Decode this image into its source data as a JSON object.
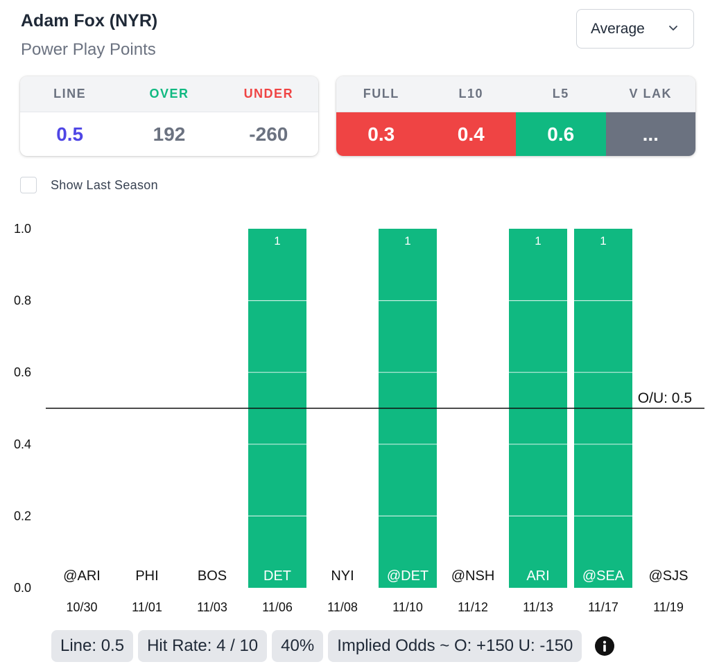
{
  "header": {
    "player": "Adam Fox (NYR)",
    "prop": "Power Play Points",
    "dropdown_value": "Average"
  },
  "line_card": {
    "headers": [
      "LINE",
      "OVER",
      "UNDER"
    ],
    "values": [
      "0.5",
      "192",
      "-260"
    ],
    "header_colors": [
      "#6b7280",
      "#10b981",
      "#ef4444"
    ],
    "value_colors": [
      "#4f46e5",
      "#6b7280",
      "#6b7280"
    ]
  },
  "avg_card": {
    "headers": [
      "FULL",
      "L10",
      "L5",
      "V LAK"
    ],
    "values": [
      "0.3",
      "0.4",
      "0.6",
      "..."
    ],
    "colors": [
      "#ef4444",
      "#ef4444",
      "#10b981",
      "#6b7280"
    ]
  },
  "show_last_season": {
    "label": "Show Last Season",
    "checked": false
  },
  "chart_data": {
    "type": "bar",
    "categories": [
      "@ARI",
      "PHI",
      "BOS",
      "DET",
      "NYI",
      "@DET",
      "@NSH",
      "ARI",
      "@SEA",
      "@SJS"
    ],
    "dates": [
      "10/30",
      "11/01",
      "11/03",
      "11/06",
      "11/08",
      "11/10",
      "11/12",
      "11/13",
      "11/17",
      "11/19"
    ],
    "values": [
      0,
      0,
      0,
      1,
      0,
      1,
      0,
      1,
      1,
      0
    ],
    "value_labels": [
      "",
      "",
      "",
      "1",
      "",
      "1",
      "",
      "1",
      "1",
      ""
    ],
    "yticks": [
      "0.0",
      "0.2",
      "0.4",
      "0.6",
      "0.8",
      "1.0"
    ],
    "ylim": [
      0,
      1
    ],
    "line_value": 0.5,
    "line_label": "O/U: 0.5",
    "bar_color": "#10b981"
  },
  "footer": {
    "line": "Line: 0.5",
    "hit_rate": "Hit Rate: 4 / 10",
    "percent": "40%",
    "implied": "Implied Odds ~ O: +150 U: -150",
    "info_icon": "info-icon"
  }
}
